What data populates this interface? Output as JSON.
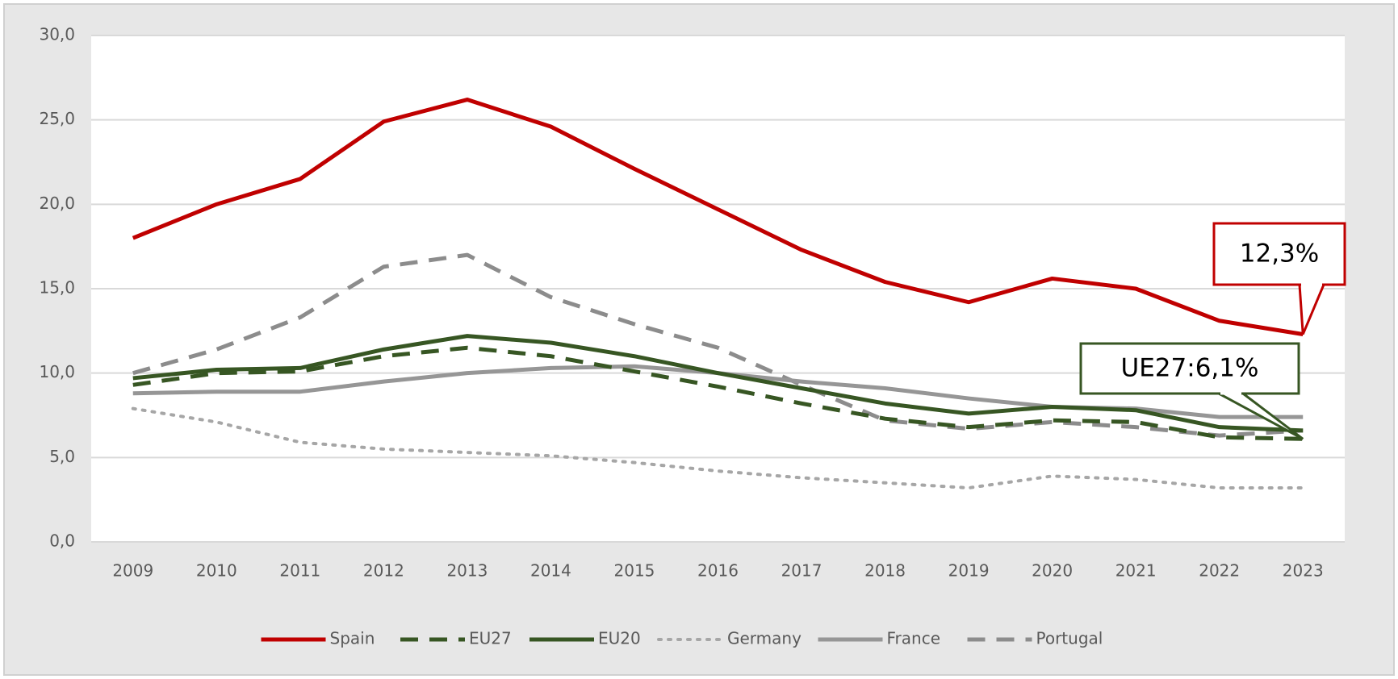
{
  "chart_data": {
    "type": "line",
    "categories": [
      "2009",
      "2010",
      "2011",
      "2012",
      "2013",
      "2014",
      "2015",
      "2016",
      "2017",
      "2018",
      "2019",
      "2020",
      "2021",
      "2022",
      "2023"
    ],
    "series": [
      {
        "name": "Spain",
        "color": "#c00000",
        "dash": "solid",
        "values": [
          18.0,
          20.0,
          21.5,
          24.9,
          26.2,
          24.6,
          22.1,
          19.7,
          17.3,
          15.4,
          14.2,
          15.6,
          15.0,
          13.1,
          12.3
        ]
      },
      {
        "name": "EU27",
        "color": "#375623",
        "dash": "dashed",
        "values": [
          9.3,
          10.0,
          10.1,
          11.0,
          11.5,
          11.0,
          10.1,
          9.2,
          8.2,
          7.3,
          6.8,
          7.2,
          7.1,
          6.2,
          6.1
        ]
      },
      {
        "name": "EU20",
        "color": "#375623",
        "dash": "solid",
        "values": [
          9.7,
          10.2,
          10.3,
          11.4,
          12.2,
          11.8,
          11.0,
          10.0,
          9.1,
          8.2,
          7.6,
          8.0,
          7.8,
          6.8,
          6.6
        ]
      },
      {
        "name": "Germany",
        "color": "#a6a6a6",
        "dash": "dotted",
        "values": [
          7.9,
          7.1,
          5.9,
          5.5,
          5.3,
          5.1,
          4.7,
          4.2,
          3.8,
          3.5,
          3.2,
          3.9,
          3.7,
          3.2,
          3.2
        ]
      },
      {
        "name": "France",
        "color": "#969696",
        "dash": "solid",
        "values": [
          8.8,
          8.9,
          8.9,
          9.5,
          10.0,
          10.3,
          10.4,
          10.0,
          9.5,
          9.1,
          8.5,
          8.0,
          7.9,
          7.4,
          7.4
        ]
      },
      {
        "name": "Portugal",
        "color": "#8c8c8c",
        "dash": "dashed",
        "values": [
          10.0,
          11.4,
          13.3,
          16.3,
          17.0,
          14.5,
          12.9,
          11.5,
          9.3,
          7.2,
          6.7,
          7.1,
          6.8,
          6.3,
          6.6
        ]
      }
    ],
    "ylim": [
      0,
      30
    ],
    "yticks": [
      {
        "value": 0,
        "label": "0,0"
      },
      {
        "value": 5,
        "label": "5,0"
      },
      {
        "value": 10,
        "label": "10,0"
      },
      {
        "value": 15,
        "label": "15,0"
      },
      {
        "value": 20,
        "label": "20,0"
      },
      {
        "value": 25,
        "label": "25,0"
      },
      {
        "value": 30,
        "label": "30,0"
      }
    ],
    "grid": true,
    "legend": "bottom",
    "annotations": [
      {
        "text": "12,3%"
      },
      {
        "text": "UE27:6,1%"
      }
    ]
  }
}
